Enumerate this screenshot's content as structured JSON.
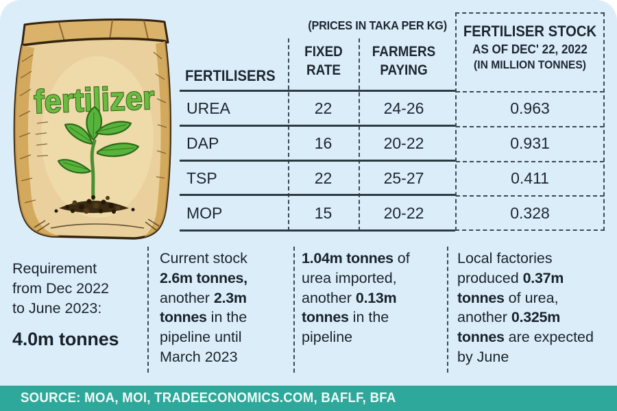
{
  "colors": {
    "card_bg": "#dcedfa",
    "accent_teal": "#2da89a",
    "ink": "#1b2630",
    "dash": "#3a4850",
    "bag_tan": "#ead09c",
    "leaf_green": "#57b43b",
    "label_green": "#6abc41"
  },
  "illustration": {
    "bag_label": "fertilizer"
  },
  "table": {
    "price_note": "(PRICES IN TAKA PER KG)",
    "columns": {
      "fertilisers": "FERTILISERS",
      "fixed_rate": "FIXED RATE",
      "farmers_paying": "FARMERS PAYING"
    },
    "stock_header": {
      "line1": "FERTILISER STOCK",
      "line2": "AS OF DEC' 22, 2022",
      "line3": "(IN MILLION TONNES)"
    },
    "rows": [
      {
        "name": "UREA",
        "fixed_rate": "22",
        "farmers_paying": "24-26",
        "stock": "0.963"
      },
      {
        "name": "DAP",
        "fixed_rate": "16",
        "farmers_paying": "20-22",
        "stock": "0.931"
      },
      {
        "name": "TSP",
        "fixed_rate": "22",
        "farmers_paying": "25-27",
        "stock": "0.411"
      },
      {
        "name": "MOP",
        "fixed_rate": "15",
        "farmers_paying": "20-22",
        "stock": "0.328"
      }
    ]
  },
  "notes": [
    {
      "segments": [
        {
          "text": "Requirement from Dec 2022 to June 2023:",
          "bold": false
        },
        {
          "text": "4.0m tonnes",
          "bold": true,
          "block": true
        }
      ]
    },
    {
      "segments": [
        {
          "text": "Current stock ",
          "bold": false
        },
        {
          "text": "2.6m tonnes,",
          "bold": true
        },
        {
          "text": " another ",
          "bold": false
        },
        {
          "text": "2.3m tonnes",
          "bold": true
        },
        {
          "text": " in the pipeline until March 2023",
          "bold": false
        }
      ]
    },
    {
      "segments": [
        {
          "text": "1.04m tonnes",
          "bold": true
        },
        {
          "text": " of urea imported, another ",
          "bold": false
        },
        {
          "text": "0.13m tonnes",
          "bold": true
        },
        {
          "text": " in the pipeline",
          "bold": false
        }
      ]
    },
    {
      "segments": [
        {
          "text": "Local factories produced ",
          "bold": false
        },
        {
          "text": "0.37m tonnes",
          "bold": true
        },
        {
          "text": " of urea, another ",
          "bold": false
        },
        {
          "text": "0.325m tonnes",
          "bold": true
        },
        {
          "text": " are expected by June",
          "bold": false
        }
      ]
    }
  ],
  "footer": {
    "source": "SOURCE: MOA, MOI, TRADEECONOMICS.COM, BAFLF, BFA"
  },
  "chart_data": {
    "type": "table",
    "title": "(PRICES IN TAKA PER KG)",
    "columns": [
      "FERTILISERS",
      "FIXED RATE",
      "FARMERS PAYING",
      "FERTILISER STOCK AS OF DEC' 22, 2022 (IN MILLION TONNES)"
    ],
    "rows": [
      [
        "UREA",
        22,
        "24-26",
        0.963
      ],
      [
        "DAP",
        16,
        "20-22",
        0.931
      ],
      [
        "TSP",
        22,
        "25-27",
        0.411
      ],
      [
        "MOP",
        15,
        "20-22",
        0.328
      ]
    ],
    "annotations": [
      "Requirement from Dec 2022 to June 2023: 4.0m tonnes",
      "Current stock 2.6m tonnes, another 2.3m tonnes in the pipeline until March 2023",
      "1.04m tonnes of urea imported, another 0.13m tonnes in the pipeline",
      "Local factories produced 0.37m tonnes of urea, another 0.325m tonnes are expected by June"
    ],
    "source": "SOURCE: MOA, MOI, TRADEECONOMICS.COM, BAFLF, BFA"
  }
}
